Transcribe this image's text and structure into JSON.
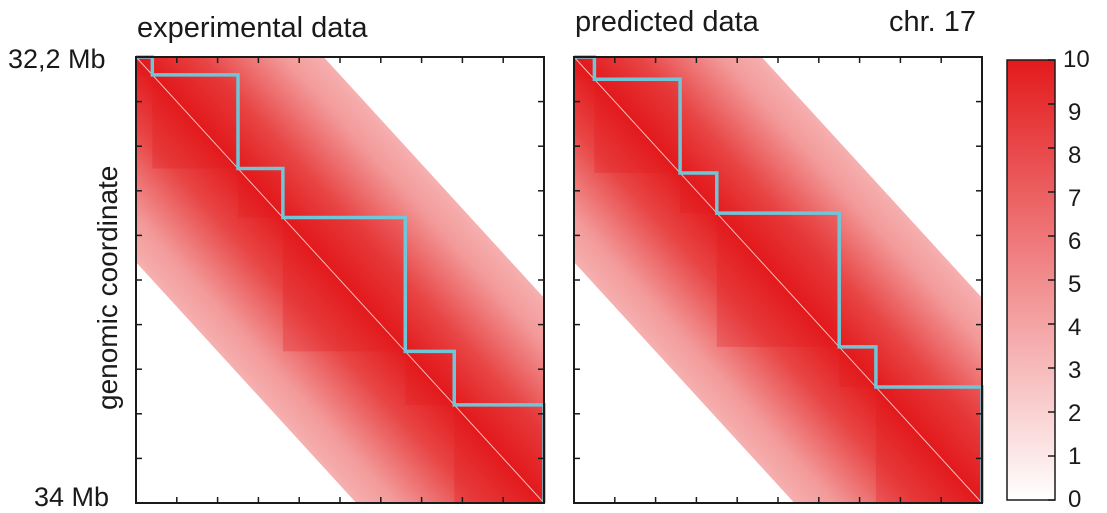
{
  "chart_data": [
    {
      "type": "heatmap",
      "title": "experimental data",
      "y_top_label": "32,2 Mb",
      "y_bottom_label": "34 Mb",
      "ylabel": "genomic coordinate",
      "domain_boundaries": [
        0.0,
        0.04,
        0.25,
        0.36,
        0.66,
        0.78,
        1.0
      ]
    },
    {
      "type": "heatmap",
      "title": "predicted data",
      "annotation": "chr. 17",
      "domain_boundaries": [
        0.0,
        0.05,
        0.26,
        0.35,
        0.65,
        0.74,
        1.0
      ]
    }
  ],
  "colorbar": {
    "min": 0,
    "max": 10,
    "ticks": [
      "0",
      "1",
      "2",
      "3",
      "4",
      "5",
      "6",
      "7",
      "8",
      "9",
      "10"
    ]
  },
  "colors": {
    "heat_high": "#e31a1c",
    "heat_low": "#ffffff",
    "domain_line": "#6ec6d8",
    "axis": "#1a1a1a"
  }
}
